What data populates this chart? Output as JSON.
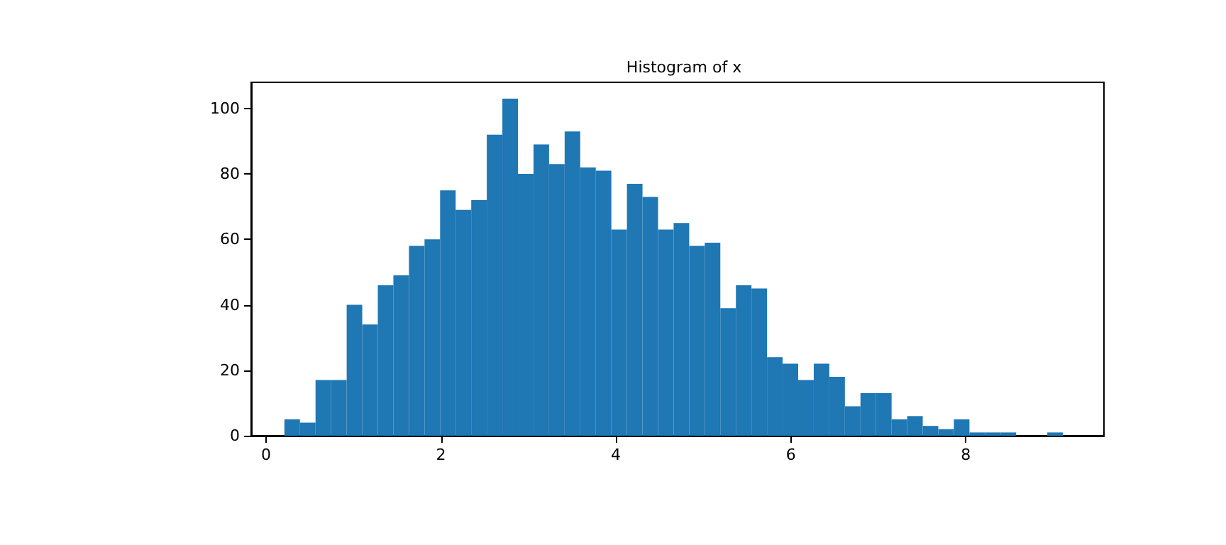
{
  "chart_data": {
    "type": "histogram",
    "title": "Histogram of x",
    "color": "#1f77b4",
    "bins": [
      0.21,
      0.388,
      0.566,
      0.744,
      0.922,
      1.1,
      1.278,
      1.456,
      1.634,
      1.812,
      1.99,
      2.168,
      2.346,
      2.524,
      2.702,
      2.88,
      3.058,
      3.236,
      3.414,
      3.592,
      3.77,
      3.948,
      4.126,
      4.304,
      4.482,
      4.66,
      4.838,
      5.016,
      5.194,
      5.372,
      5.55,
      5.728,
      5.906,
      6.084,
      6.262,
      6.44,
      6.618,
      6.796,
      6.974,
      7.152,
      7.33,
      7.508,
      7.686,
      7.864,
      8.042,
      8.22,
      8.398,
      8.576,
      8.754,
      8.932,
      9.11
    ],
    "values": [
      5,
      4,
      17,
      17,
      40,
      34,
      46,
      49,
      58,
      60,
      75,
      69,
      72,
      92,
      103,
      80,
      89,
      83,
      93,
      82,
      81,
      63,
      77,
      73,
      63,
      65,
      58,
      59,
      39,
      46,
      45,
      24,
      22,
      17,
      22,
      18,
      9,
      13,
      13,
      5,
      6,
      3,
      2,
      5,
      1,
      1,
      1,
      0,
      0,
      1
    ],
    "xlim": [
      -0.17,
      9.58
    ],
    "ylim": [
      0,
      108
    ],
    "xticks": [
      0,
      2,
      4,
      6,
      8
    ],
    "yticks": [
      0,
      20,
      40,
      60,
      80,
      100
    ],
    "grid": false
  }
}
